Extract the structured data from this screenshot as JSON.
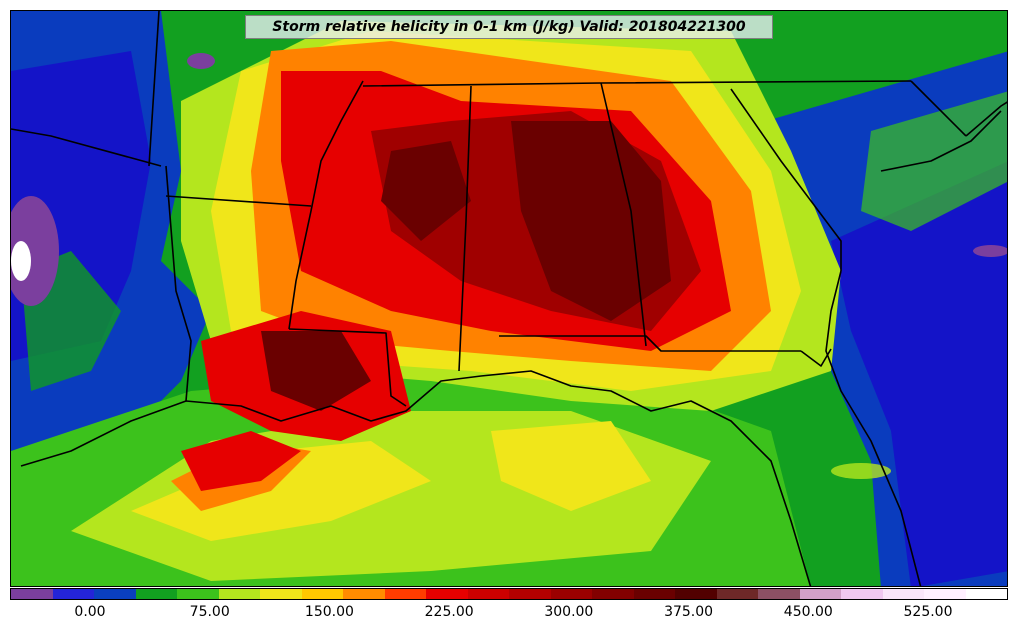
{
  "title": "Storm relative helicity in 0-1 km (J/kg) Valid: 201804221300",
  "colorbar": {
    "colors": [
      "#7b3f9e",
      "#2424d8",
      "#0a3fbf",
      "#12a020",
      "#3cc21c",
      "#b4e61e",
      "#f0e61a",
      "#ffc800",
      "#ff8c00",
      "#ff3c00",
      "#e60000",
      "#cc0000",
      "#b40000",
      "#9b0000",
      "#820000",
      "#6a0000",
      "#520000",
      "#6e2828",
      "#8c5064",
      "#d2a0c8",
      "#f0c8f0",
      "#fae6fa",
      "#fff0ff",
      "#ffffff"
    ],
    "labels": [
      {
        "text": "0.00",
        "value": 0
      },
      {
        "text": "75.00",
        "value": 75
      },
      {
        "text": "150.00",
        "value": 150
      },
      {
        "text": "225.00",
        "value": 225
      },
      {
        "text": "300.00",
        "value": 300
      },
      {
        "text": "375.00",
        "value": 375
      },
      {
        "text": "450.00",
        "value": 450
      },
      {
        "text": "525.00",
        "value": 525
      }
    ]
  },
  "palette": {
    "deep_blue": "#1414c8",
    "blue": "#0a3cbe",
    "dark_green": "#0f9a22",
    "green": "#3cc21c",
    "lime": "#b4e61e",
    "yellow": "#f0e61a",
    "orange": "#ff8200",
    "red": "#e60000",
    "dark_red": "#a00000",
    "maroon": "#6a0000",
    "purple": "#7b3f9e",
    "white": "#ffffff",
    "border": "#000000"
  }
}
